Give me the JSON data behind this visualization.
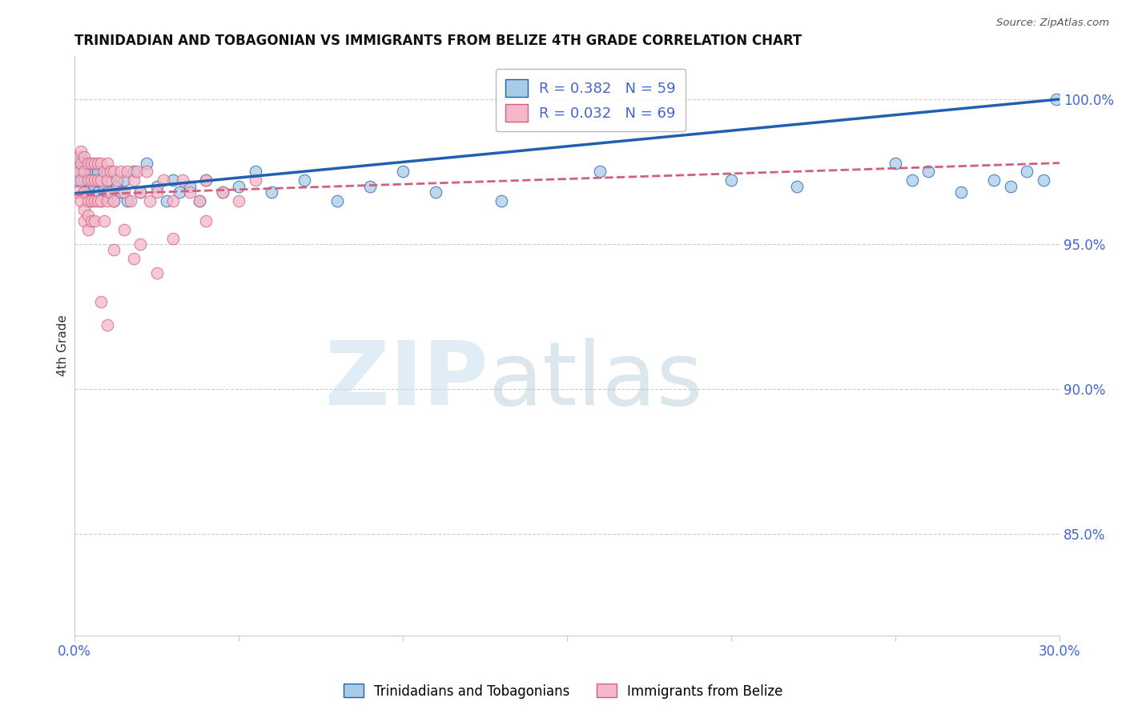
{
  "title": "TRINIDADIAN AND TOBAGONIAN VS IMMIGRANTS FROM BELIZE 4TH GRADE CORRELATION CHART",
  "source": "Source: ZipAtlas.com",
  "ylabel": "4th Grade",
  "legend_label_blue": "Trinidadians and Tobagonians",
  "legend_label_pink": "Immigrants from Belize",
  "R_blue": 0.382,
  "N_blue": 59,
  "R_pink": 0.032,
  "N_pink": 69,
  "watermark_zip": "ZIP",
  "watermark_atlas": "atlas",
  "xlim": [
    0.0,
    0.3
  ],
  "ylim": [
    0.815,
    1.015
  ],
  "yticks": [
    0.85,
    0.9,
    0.95,
    1.0
  ],
  "xticks": [
    0.0,
    0.05,
    0.1,
    0.15,
    0.2,
    0.25,
    0.3
  ],
  "color_blue": "#a8cce8",
  "color_pink": "#f4b8c8",
  "color_trend_blue": "#2060b0",
  "color_trend_pink": "#d06080",
  "color_axis_labels": "#4466cc",
  "background": "#ffffff",
  "blue_x": [
    0.001,
    0.001,
    0.002,
    0.002,
    0.003,
    0.003,
    0.003,
    0.004,
    0.004,
    0.005,
    0.005,
    0.005,
    0.006,
    0.006,
    0.007,
    0.007,
    0.008,
    0.008,
    0.009,
    0.01,
    0.01,
    0.011,
    0.012,
    0.013,
    0.014,
    0.015,
    0.016,
    0.018,
    0.02,
    0.022,
    0.025,
    0.028,
    0.03,
    0.032,
    0.035,
    0.038,
    0.04,
    0.045,
    0.05,
    0.055,
    0.06,
    0.07,
    0.08,
    0.09,
    0.1,
    0.11,
    0.13,
    0.16,
    0.2,
    0.22,
    0.25,
    0.255,
    0.26,
    0.27,
    0.28,
    0.285,
    0.29,
    0.295,
    0.299
  ],
  "blue_y": [
    0.978,
    0.972,
    0.98,
    0.975,
    0.978,
    0.972,
    0.968,
    0.975,
    0.968,
    0.975,
    0.97,
    0.965,
    0.975,
    0.97,
    0.975,
    0.968,
    0.972,
    0.965,
    0.97,
    0.975,
    0.968,
    0.972,
    0.965,
    0.97,
    0.968,
    0.972,
    0.965,
    0.975,
    0.968,
    0.978,
    0.97,
    0.965,
    0.972,
    0.968,
    0.97,
    0.965,
    0.972,
    0.968,
    0.97,
    0.975,
    0.968,
    0.972,
    0.965,
    0.97,
    0.975,
    0.968,
    0.965,
    0.975,
    0.972,
    0.97,
    0.978,
    0.972,
    0.975,
    0.968,
    0.972,
    0.97,
    0.975,
    0.972,
    1.0
  ],
  "pink_x": [
    0.001,
    0.001,
    0.001,
    0.002,
    0.002,
    0.002,
    0.002,
    0.003,
    0.003,
    0.003,
    0.003,
    0.003,
    0.004,
    0.004,
    0.004,
    0.004,
    0.004,
    0.005,
    0.005,
    0.005,
    0.005,
    0.006,
    0.006,
    0.006,
    0.006,
    0.007,
    0.007,
    0.007,
    0.008,
    0.008,
    0.008,
    0.009,
    0.009,
    0.01,
    0.01,
    0.01,
    0.011,
    0.011,
    0.012,
    0.012,
    0.013,
    0.014,
    0.015,
    0.016,
    0.017,
    0.018,
    0.019,
    0.02,
    0.022,
    0.023,
    0.025,
    0.027,
    0.03,
    0.033,
    0.035,
    0.038,
    0.04,
    0.045,
    0.05,
    0.055,
    0.008,
    0.01,
    0.012,
    0.015,
    0.018,
    0.02,
    0.025,
    0.03,
    0.04
  ],
  "pink_y": [
    0.98,
    0.975,
    0.968,
    0.982,
    0.978,
    0.972,
    0.965,
    0.98,
    0.975,
    0.968,
    0.962,
    0.958,
    0.978,
    0.972,
    0.965,
    0.96,
    0.955,
    0.978,
    0.972,
    0.965,
    0.958,
    0.978,
    0.972,
    0.965,
    0.958,
    0.978,
    0.972,
    0.965,
    0.978,
    0.972,
    0.965,
    0.975,
    0.958,
    0.978,
    0.972,
    0.965,
    0.975,
    0.968,
    0.975,
    0.965,
    0.972,
    0.975,
    0.968,
    0.975,
    0.965,
    0.972,
    0.975,
    0.968,
    0.975,
    0.965,
    0.968,
    0.972,
    0.965,
    0.972,
    0.968,
    0.965,
    0.972,
    0.968,
    0.965,
    0.972,
    0.93,
    0.922,
    0.948,
    0.955,
    0.945,
    0.95,
    0.94,
    0.952,
    0.958
  ]
}
